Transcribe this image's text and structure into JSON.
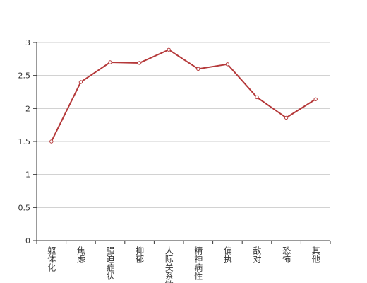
{
  "chart_data": {
    "type": "line",
    "categories": [
      "躯体化",
      "焦虑",
      "强迫症状",
      "抑郁",
      "人际关系敏感",
      "精神病性",
      "偏执",
      "敌对",
      "恐怖",
      "其他"
    ],
    "series": [
      {
        "color": "#b5393a",
        "values": [
          1.5,
          2.4,
          2.7,
          2.69,
          2.89,
          2.6,
          2.67,
          2.17,
          1.86,
          2.14
        ]
      }
    ],
    "ylim": [
      0,
      3
    ],
    "yticks": [
      0,
      0.5,
      1,
      1.5,
      2,
      2.5,
      3
    ],
    "grid": true
  }
}
